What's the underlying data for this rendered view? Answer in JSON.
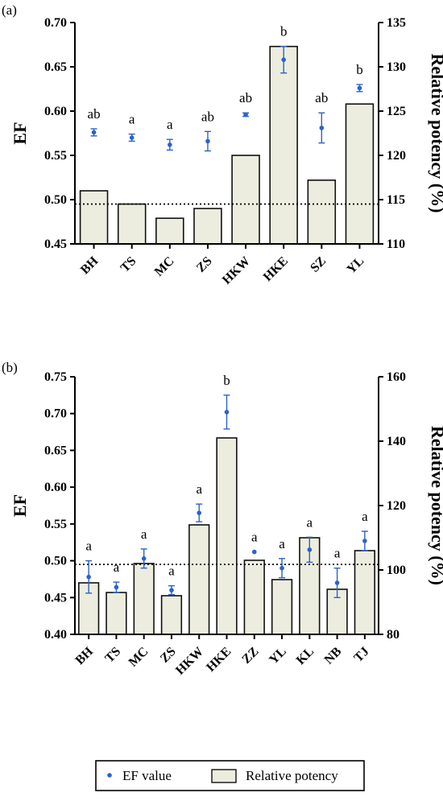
{
  "chart_data": [
    {
      "type": "bar",
      "panel_label": "(a)",
      "categories": [
        "BH",
        "TS",
        "MC",
        "ZS",
        "HKW",
        "HKE",
        "SZ",
        "YL"
      ],
      "y_left_label": "EF",
      "y_left_lim": [
        0.45,
        0.7
      ],
      "y_left_ticks": [
        "0.45",
        "0.50",
        "0.55",
        "0.60",
        "0.65",
        "0.70"
      ],
      "y_right_label": "Relative potency (%)",
      "y_right_lim": [
        110,
        135
      ],
      "y_right_ticks": [
        "110",
        "115",
        "120",
        "125",
        "130",
        "135"
      ],
      "reference_line_ef": 0.495,
      "series": [
        {
          "name": "Relative potency",
          "axis": "right",
          "values": [
            116.0,
            114.5,
            112.9,
            114.0,
            120.0,
            132.3,
            117.2,
            125.8
          ]
        },
        {
          "name": "EF value",
          "axis": "left",
          "values": [
            0.576,
            0.57,
            0.562,
            0.566,
            0.596,
            0.658,
            0.581,
            0.626
          ],
          "errors": [
            0.004,
            0.004,
            0.006,
            0.011,
            0.002,
            0.015,
            0.017,
            0.004
          ]
        }
      ],
      "significance_labels": [
        "ab",
        "a",
        "a",
        "ab",
        "ab",
        "b",
        "ab",
        "b"
      ]
    },
    {
      "type": "bar",
      "panel_label": "(b)",
      "categories": [
        "BH",
        "TS",
        "MC",
        "ZS",
        "HKW",
        "HKE",
        "ZZ",
        "YL",
        "KL",
        "NB",
        "TJ"
      ],
      "y_left_label": "EF",
      "y_left_lim": [
        0.4,
        0.75
      ],
      "y_left_ticks": [
        "0.40",
        "0.45",
        "0.50",
        "0.55",
        "0.60",
        "0.65",
        "0.70",
        "0.75"
      ],
      "y_right_label": "Relative potency (%)",
      "y_right_lim": [
        80,
        160
      ],
      "y_right_ticks": [
        "80",
        "100",
        "120",
        "140",
        "160"
      ],
      "reference_line_ef": 0.495,
      "series": [
        {
          "name": "Relative potency",
          "axis": "right",
          "values": [
            96.0,
            93.0,
            102.0,
            92.0,
            114.0,
            141.0,
            103.0,
            97.0,
            110.0,
            94.0,
            106.0
          ]
        },
        {
          "name": "EF value",
          "axis": "left",
          "values": [
            0.478,
            0.464,
            0.503,
            0.46,
            0.565,
            0.702,
            0.512,
            0.49,
            0.515,
            0.47,
            0.527
          ],
          "errors": [
            0.022,
            0.007,
            0.013,
            0.006,
            0.012,
            0.023,
            0.0,
            0.013,
            0.017,
            0.02,
            0.013
          ]
        }
      ],
      "significance_labels": [
        "a",
        "a",
        "a",
        "a",
        "a",
        "b",
        "a",
        "a",
        "a",
        "a",
        "a"
      ]
    }
  ],
  "legend": {
    "ef_label": "EF value",
    "potency_label": "Relative potency"
  },
  "colors": {
    "bar_fill": "#ecedde",
    "bar_stroke": "#111111",
    "ef_point": "#2b62c9",
    "axis": "#000000"
  }
}
